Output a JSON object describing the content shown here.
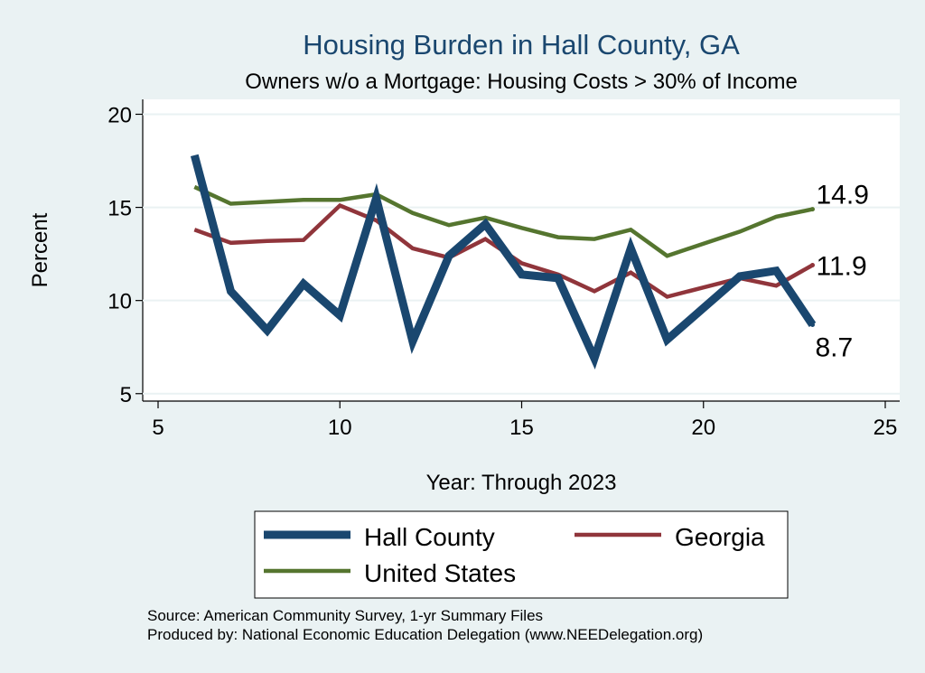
{
  "chart_data": {
    "type": "line",
    "title": "Housing Burden in Hall County, GA",
    "subtitle": "Owners w/o a Mortgage: Housing Costs > 30% of Income",
    "xlabel": "Year: Through 2023",
    "ylabel": "Percent",
    "xlim": [
      5,
      25
    ],
    "ylim": [
      4.6,
      20.8
    ],
    "xticks": [
      5,
      10,
      15,
      20,
      25
    ],
    "yticks": [
      5,
      10,
      15,
      20
    ],
    "grid": true,
    "legend_position": "bottom",
    "x": [
      6,
      7,
      8,
      9,
      10,
      11,
      12,
      13,
      14,
      15,
      16,
      17,
      18,
      19,
      20,
      21,
      22,
      23
    ],
    "series": [
      {
        "name": "Hall County",
        "color": "#1a476f",
        "values": [
          17.8,
          10.5,
          8.4,
          10.9,
          9.2,
          15.5,
          7.8,
          12.4,
          14.1,
          11.4,
          11.2,
          6.9,
          12.8,
          7.9,
          9.6,
          11.3,
          11.6,
          8.7
        ],
        "end_label": "8.7"
      },
      {
        "name": "Georgia",
        "color": "#90353b",
        "values": [
          13.8,
          13.1,
          13.2,
          13.25,
          15.1,
          14.3,
          12.8,
          12.3,
          13.3,
          12.0,
          11.4,
          10.5,
          11.5,
          10.2,
          10.7,
          11.2,
          10.8,
          11.9
        ],
        "end_label": "11.9"
      },
      {
        "name": "United States",
        "color": "#55752f",
        "values": [
          16.1,
          15.2,
          15.3,
          15.4,
          15.4,
          15.7,
          14.7,
          14.05,
          14.45,
          13.9,
          13.4,
          13.3,
          13.8,
          12.4,
          13.05,
          13.7,
          14.5,
          14.9
        ],
        "end_label": "14.9"
      }
    ],
    "source_lines": [
      "Source: American Community Survey, 1-yr Summary Files",
      "Produced by: National Economic Education Delegation (www.NEEDelegation.org)"
    ]
  }
}
